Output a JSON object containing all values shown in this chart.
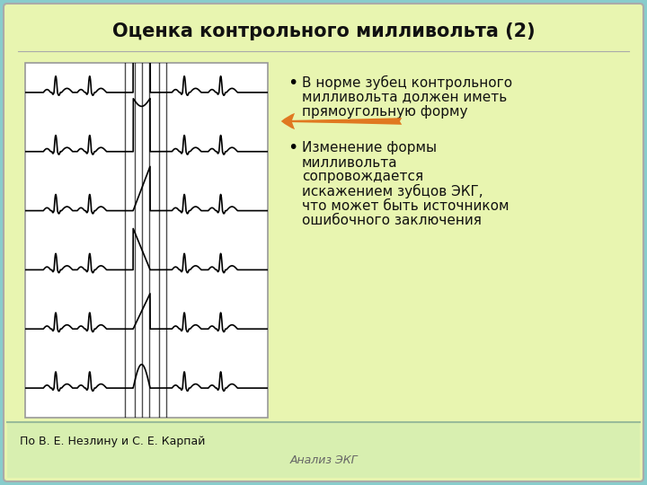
{
  "title": "Оценка контрольного милливольта (2)",
  "title_fontsize": 15,
  "bullet1_line1": "В норме зубец контрольного",
  "bullet1_line2": "милливольта должен иметь",
  "bullet1_line3": "прямоугольную форму",
  "bullet2_line1": "Изменение формы",
  "bullet2_line2": "милливольта",
  "bullet2_line3": "сопровождается",
  "bullet2_line4": "искажением зубцов ЭКГ,",
  "bullet2_line5": "что может быть источником",
  "bullet2_line6": "ошибочного заключения",
  "footer_left": "По В. Е. Незлину и С. Е. Карпай",
  "footer_center": "Анализ ЭКГ",
  "bg_color": "#e8f5b0",
  "slide_border_color": "#88cccc",
  "footer_bg": "#d8efb0",
  "bullet_fontsize": 11,
  "footer_fontsize": 9,
  "title_color": "#111111",
  "text_color": "#111111",
  "arrow_color": "#e07820",
  "image_bg": "#ffffff"
}
